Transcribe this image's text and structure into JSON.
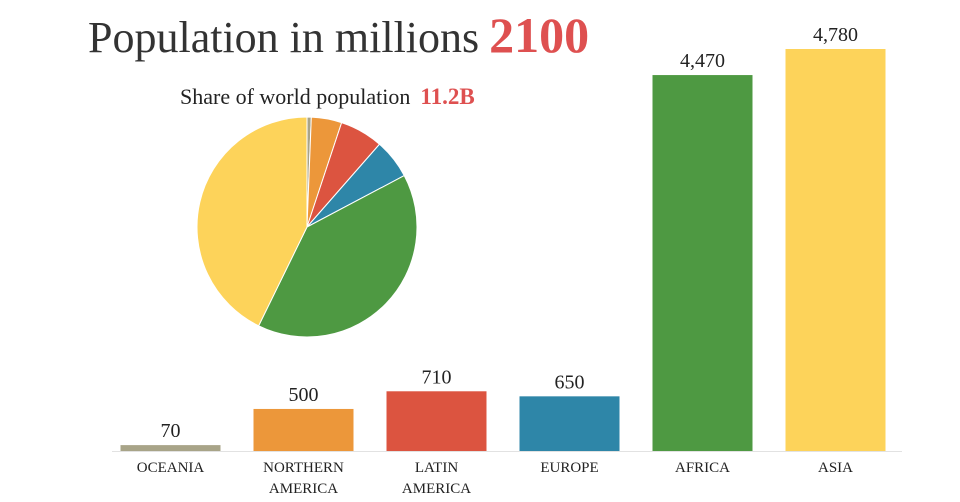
{
  "title": "Population in millions",
  "year": "2100",
  "subtitle": "Share of world population",
  "total": "11.2B",
  "accent_color": "#de5050",
  "chart_data": {
    "type": "bar",
    "title": "Population in millions 2100",
    "xlabel": "",
    "ylabel": "",
    "ylim": [
      0,
      4780
    ],
    "grid": false,
    "categories": [
      [
        "OCEANIA"
      ],
      [
        "NORTHERN",
        "AMERICA"
      ],
      [
        "LATIN",
        "AMERICA"
      ],
      [
        "EUROPE"
      ],
      [
        "AFRICA"
      ],
      [
        "ASIA"
      ]
    ],
    "values": [
      70,
      500,
      710,
      650,
      4470,
      4780
    ],
    "value_labels": [
      "70",
      "500",
      "710",
      "650",
      "4,470",
      "4,780"
    ],
    "colors": [
      "#a8a488",
      "#ec973a",
      "#dc5440",
      "#2e86a8",
      "#4e9942",
      "#fdd35a"
    ],
    "inset": {
      "type": "pie",
      "title": "Share of world population",
      "total_label": "11.2B",
      "labels": [
        "OCEANIA",
        "NORTHERN AMERICA",
        "LATIN AMERICA",
        "EUROPE",
        "AFRICA",
        "ASIA"
      ],
      "values": [
        70,
        500,
        710,
        650,
        4470,
        4780
      ]
    }
  }
}
